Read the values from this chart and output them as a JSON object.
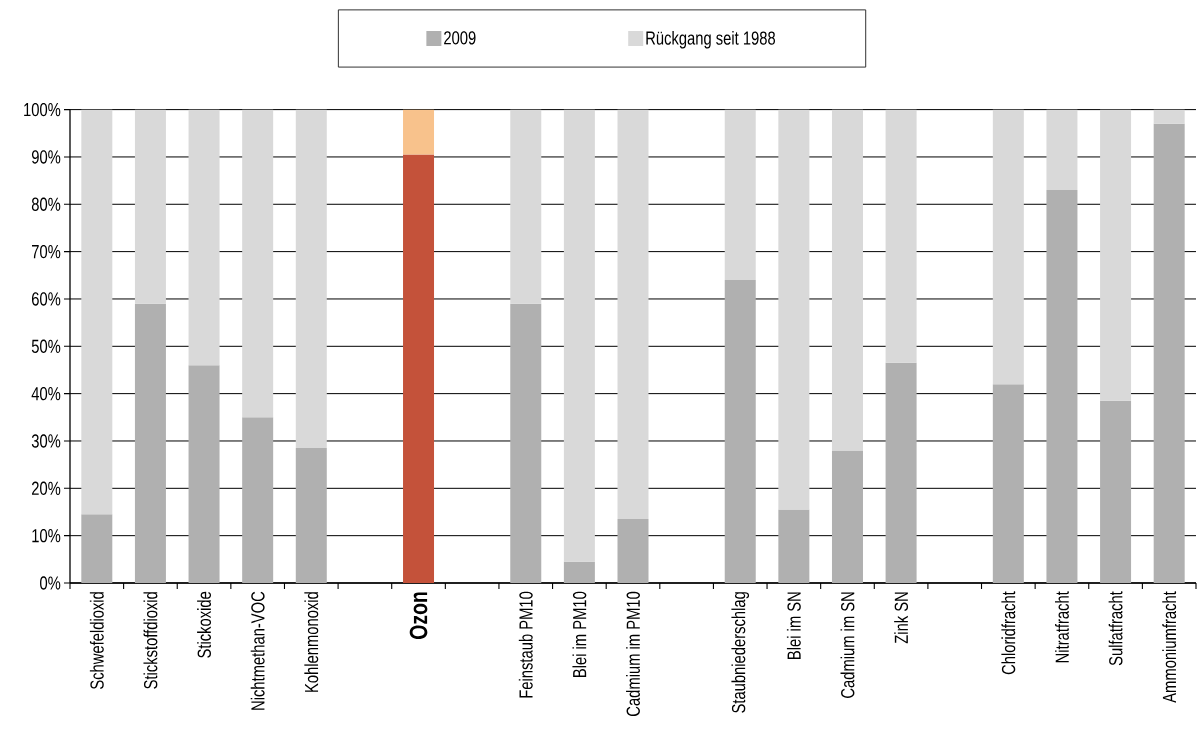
{
  "chart_data": {
    "type": "bar",
    "stacked": true,
    "categories": [
      "Schwefeldioxid",
      "Stickstoffdioxid",
      "Stickoxide",
      "Nichtmethan-VOC",
      "Kohlenmonoxid",
      null,
      "Ozon",
      null,
      "Feinstaub PM10",
      "Blei im PM10",
      "Cadmium im PM10",
      null,
      "Staubniederschlag",
      "Blei im SN",
      "Cadmium im SN",
      "Zink SN",
      null,
      "Chloridfracht",
      "Nitratfracht",
      "Sulfatfracht",
      "Ammoniumfracht"
    ],
    "series": [
      {
        "name": "2009",
        "color": "#b0b0b0",
        "colors": [
          "#b0b0b0",
          "#b0b0b0",
          "#b0b0b0",
          "#b0b0b0",
          "#b0b0b0",
          null,
          "#c4523a",
          null,
          "#b0b0b0",
          "#b0b0b0",
          "#b0b0b0",
          null,
          "#b0b0b0",
          "#b0b0b0",
          "#b0b0b0",
          "#b0b0b0",
          null,
          "#b0b0b0",
          "#b0b0b0",
          "#b0b0b0",
          "#b0b0b0"
        ],
        "values": [
          14.5,
          59,
          46,
          35,
          28.5,
          null,
          90.5,
          null,
          59,
          4.5,
          13.5,
          null,
          64,
          15.5,
          28,
          46.5,
          null,
          42,
          83,
          38.5,
          97
        ]
      },
      {
        "name": "Rückgang seit 1988",
        "color": "#d9d9d9",
        "colors": [
          "#d9d9d9",
          "#d9d9d9",
          "#d9d9d9",
          "#d9d9d9",
          "#d9d9d9",
          null,
          "#f8c28c",
          null,
          "#d9d9d9",
          "#d9d9d9",
          "#d9d9d9",
          null,
          "#d9d9d9",
          "#d9d9d9",
          "#d9d9d9",
          "#d9d9d9",
          null,
          "#d9d9d9",
          "#d9d9d9",
          "#d9d9d9",
          "#d9d9d9"
        ],
        "values": [
          85.5,
          41,
          54,
          65,
          71.5,
          null,
          9.5,
          null,
          41,
          95.5,
          86.5,
          null,
          36,
          84.5,
          72,
          53.5,
          null,
          58,
          17,
          61.5,
          3
        ]
      }
    ],
    "ylim": [
      0,
      100
    ],
    "yticks": [
      {
        "value": 0,
        "label": "0%"
      },
      {
        "value": 10,
        "label": "10%"
      },
      {
        "value": 20,
        "label": "20%"
      },
      {
        "value": 30,
        "label": "30%"
      },
      {
        "value": 40,
        "label": "40%"
      },
      {
        "value": 50,
        "label": "50%"
      },
      {
        "value": 60,
        "label": "60%"
      },
      {
        "value": 70,
        "label": "70%"
      },
      {
        "value": 80,
        "label": "80%"
      },
      {
        "value": 90,
        "label": "90%"
      },
      {
        "value": 100,
        "label": "100%"
      }
    ],
    "grid": "y",
    "legend": "top"
  }
}
